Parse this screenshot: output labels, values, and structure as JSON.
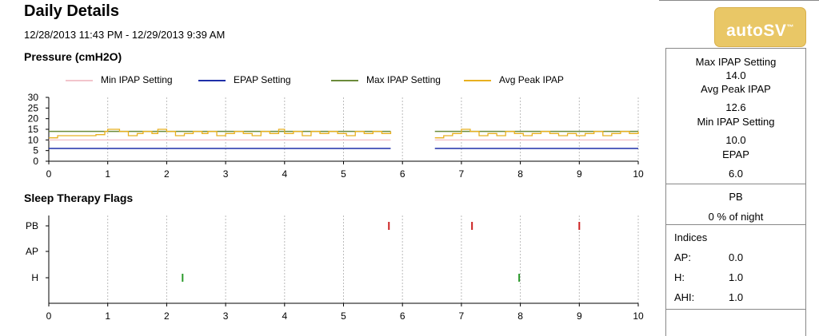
{
  "header": {
    "title": "Daily Details",
    "date_range": "12/28/2013 11:43 PM - 12/29/2013 9:39 AM",
    "badge": "autoSV",
    "badge_tm": "™"
  },
  "pressure_section": {
    "title": "Pressure (cmH2O)"
  },
  "flags_section": {
    "title": "Sleep Therapy Flags"
  },
  "legend": [
    {
      "label": "Min IPAP Setting",
      "color": "#f2c4cc"
    },
    {
      "label": "EPAP Setting",
      "color": "#1f2fa8"
    },
    {
      "label": "Max IPAP Setting",
      "color": "#6b8b3a"
    },
    {
      "label": "Avg Peak IPAP",
      "color": "#e8b020"
    }
  ],
  "summary": {
    "max_ipap_label": "Max IPAP Setting",
    "max_ipap_value": "14.0",
    "avg_peak_label": "Avg Peak IPAP",
    "avg_peak_value": "12.6",
    "min_ipap_label": "Min IPAP Setting",
    "min_ipap_value": "10.0",
    "epap_label": "EPAP",
    "epap_value": "6.0",
    "pb_label": "PB",
    "pb_value": "0 % of night",
    "indices_label": "Indices",
    "indices": [
      {
        "label": "AP:",
        "value": "0.0"
      },
      {
        "label": "H:",
        "value": "1.0"
      },
      {
        "label": "AHI:",
        "value": "1.0"
      }
    ]
  },
  "chart_data": [
    {
      "type": "line",
      "title": "Pressure (cmH2O)",
      "xlabel": "",
      "ylabel": "",
      "xlim": [
        0,
        10
      ],
      "ylim": [
        0,
        30
      ],
      "x_ticks": [
        0,
        1,
        2,
        3,
        4,
        5,
        6,
        7,
        8,
        9,
        10
      ],
      "y_ticks": [
        0,
        5,
        10,
        15,
        20,
        25,
        30
      ],
      "grid": "vertical",
      "legend_position": "top",
      "segments": [
        [
          0,
          5.8
        ],
        [
          6.55,
          10
        ]
      ],
      "series": [
        {
          "name": "Min IPAP Setting",
          "color": "#f2c4cc",
          "constant": 10.0
        },
        {
          "name": "EPAP Setting",
          "color": "#1f2fa8",
          "constant": 6.0
        },
        {
          "name": "Max IPAP Setting",
          "color": "#6b8b3a",
          "constant": 14.0
        },
        {
          "name": "Avg Peak IPAP",
          "color": "#e8b020",
          "points": [
            [
              0.0,
              11
            ],
            [
              0.15,
              12
            ],
            [
              0.4,
              12
            ],
            [
              0.55,
              12
            ],
            [
              0.8,
              12.5
            ],
            [
              0.95,
              14
            ],
            [
              1.0,
              15
            ],
            [
              1.2,
              14
            ],
            [
              1.35,
              12
            ],
            [
              1.5,
              13
            ],
            [
              1.6,
              14
            ],
            [
              1.75,
              13
            ],
            [
              1.85,
              15
            ],
            [
              2.0,
              14
            ],
            [
              2.15,
              12
            ],
            [
              2.3,
              13
            ],
            [
              2.45,
              14
            ],
            [
              2.6,
              13
            ],
            [
              2.7,
              14
            ],
            [
              2.85,
              12
            ],
            [
              3.0,
              13
            ],
            [
              3.15,
              14
            ],
            [
              3.3,
              13
            ],
            [
              3.45,
              12
            ],
            [
              3.6,
              14
            ],
            [
              3.75,
              13
            ],
            [
              3.9,
              15
            ],
            [
              4.0,
              13
            ],
            [
              4.15,
              14
            ],
            [
              4.3,
              12
            ],
            [
              4.45,
              14
            ],
            [
              4.6,
              13
            ],
            [
              4.75,
              14
            ],
            [
              4.9,
              13
            ],
            [
              5.05,
              12
            ],
            [
              5.2,
              14
            ],
            [
              5.35,
              13
            ],
            [
              5.5,
              14
            ],
            [
              5.65,
              13
            ],
            [
              5.8,
              14
            ],
            [
              6.55,
              11
            ],
            [
              6.7,
              12
            ],
            [
              6.85,
              13
            ],
            [
              7.0,
              15
            ],
            [
              7.15,
              14
            ],
            [
              7.3,
              12
            ],
            [
              7.45,
              13
            ],
            [
              7.6,
              12
            ],
            [
              7.75,
              14
            ],
            [
              7.9,
              13
            ],
            [
              8.05,
              12
            ],
            [
              8.2,
              13
            ],
            [
              8.35,
              14
            ],
            [
              8.5,
              13
            ],
            [
              8.65,
              12
            ],
            [
              8.8,
              13
            ],
            [
              8.95,
              12
            ],
            [
              9.1,
              13
            ],
            [
              9.25,
              14
            ],
            [
              9.4,
              12
            ],
            [
              9.55,
              13
            ],
            [
              9.7,
              14
            ],
            [
              9.85,
              13
            ],
            [
              10.0,
              14
            ]
          ]
        }
      ]
    },
    {
      "type": "scatter",
      "title": "Sleep Therapy Flags",
      "xlim": [
        0,
        10
      ],
      "x_ticks": [
        0,
        1,
        2,
        3,
        4,
        5,
        6,
        7,
        8,
        9,
        10
      ],
      "categories": [
        "PB",
        "AP",
        "H"
      ],
      "grid": "vertical",
      "series": [
        {
          "name": "PB",
          "color": "#cc2222",
          "x": [
            5.77,
            7.18,
            9.0
          ]
        },
        {
          "name": "AP",
          "color": "#2a6ab0",
          "x": []
        },
        {
          "name": "H",
          "color": "#2a9a2a",
          "x": [
            2.27,
            7.98
          ]
        }
      ]
    }
  ]
}
